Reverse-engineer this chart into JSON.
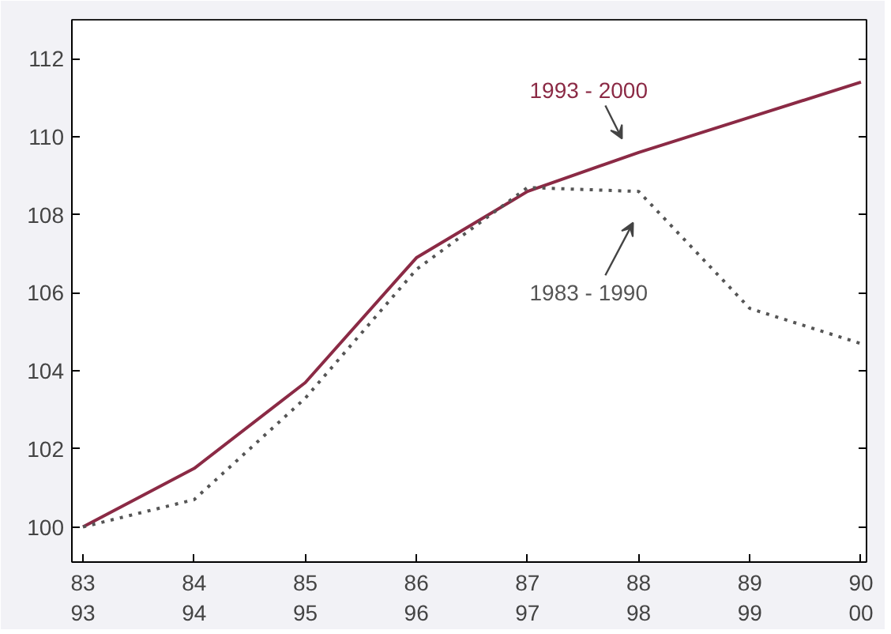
{
  "chart_data": {
    "type": "line",
    "categories": [
      "83\n93",
      "84\n94",
      "85\n95",
      "86\n96",
      "87\n97",
      "88\n98",
      "89\n99",
      "90\n00"
    ],
    "series": [
      {
        "name": "1993 - 2000",
        "color": "#8b2a45",
        "line_style": "solid",
        "values": [
          100,
          101.5,
          103.7,
          106.9,
          108.6,
          109.6,
          110.5,
          111.4
        ]
      },
      {
        "name": "1983 - 1990",
        "color": "#555555",
        "line_style": "dotted",
        "values": [
          100,
          100.7,
          103.3,
          106.6,
          108.7,
          108.6,
          105.6,
          104.7
        ]
      }
    ],
    "ylim": [
      99.1,
      113
    ],
    "yticks": [
      100,
      102,
      104,
      106,
      108,
      110,
      112
    ],
    "grid": false,
    "marker": "none"
  }
}
